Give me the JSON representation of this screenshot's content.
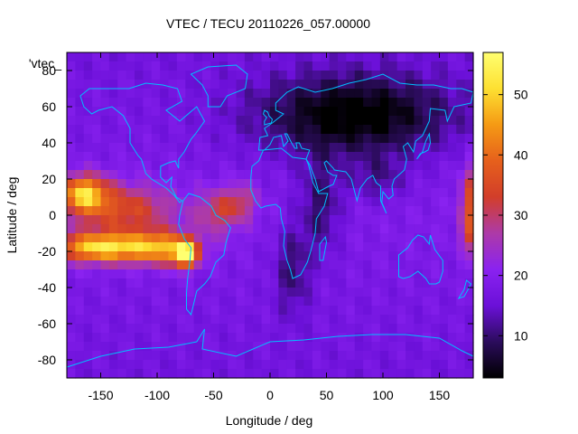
{
  "chart_data": {
    "type": "heatmap",
    "title": "VTEC / TECU 20110226_057.00000",
    "xlabel": "Longitude / deg",
    "ylabel": "Latitude / deg",
    "key_label": "'vtec_",
    "xlim": [
      -180,
      180
    ],
    "ylim": [
      -90,
      90
    ],
    "x_ticks": [
      -150,
      -100,
      -50,
      0,
      50,
      100,
      150
    ],
    "y_ticks": [
      -80,
      -60,
      -40,
      -20,
      0,
      20,
      40,
      60,
      80
    ],
    "colorbar": {
      "range": [
        3,
        57
      ],
      "ticks": [
        10,
        20,
        30,
        40,
        50
      ],
      "palette": [
        "#000000",
        "#2b0c5c",
        "#6b10d8",
        "#8a22f0",
        "#ad3aa8",
        "#d23e2a",
        "#e6601c",
        "#f59a14",
        "#fde032",
        "#ffff70"
      ]
    },
    "coastline_color": "#00bfff",
    "features": [
      {
        "lon": -165,
        "lat": 12,
        "vtec": 51
      },
      {
        "lon": -162,
        "lat": -20,
        "vtec": 55
      },
      {
        "lon": -120,
        "lat": -20,
        "vtec": 55
      },
      {
        "lon": -75,
        "lat": -22,
        "vtec": 54
      },
      {
        "lon": -130,
        "lat": 5,
        "vtec": 38
      },
      {
        "lon": -50,
        "lat": 2,
        "vtec": 33
      },
      {
        "lon": -30,
        "lat": 8,
        "vtec": 30
      },
      {
        "lon": 178,
        "lat": 5,
        "vtec": 40
      },
      {
        "lon": 178,
        "lat": -15,
        "vtec": 44
      },
      {
        "lon": 75,
        "lat": 48,
        "vtec": 4
      },
      {
        "lon": 50,
        "lat": 5,
        "vtec": 6
      }
    ]
  }
}
